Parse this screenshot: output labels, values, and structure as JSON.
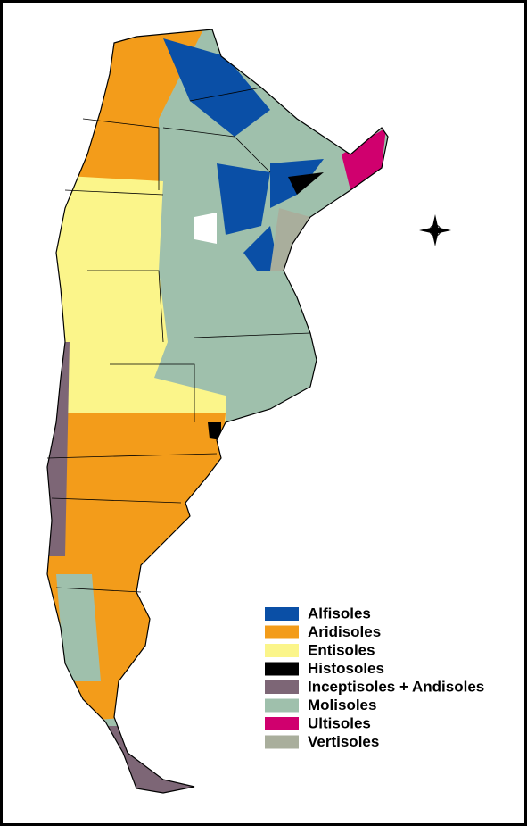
{
  "legend": {
    "items": [
      {
        "label": "Alfisoles",
        "color": "#0a4fa6"
      },
      {
        "label": "Aridisoles",
        "color": "#f39c1a"
      },
      {
        "label": "Entisoles",
        "color": "#fbf58a"
      },
      {
        "label": "Histosoles",
        "color": "#000000"
      },
      {
        "label": "Inceptisoles + Andisoles",
        "color": "#7d6676"
      },
      {
        "label": "Molisoles",
        "color": "#9fc0ac"
      },
      {
        "label": "Ultisoles",
        "color": "#d0006e"
      },
      {
        "label": "Vertisoles",
        "color": "#a9ae9c"
      }
    ]
  }
}
